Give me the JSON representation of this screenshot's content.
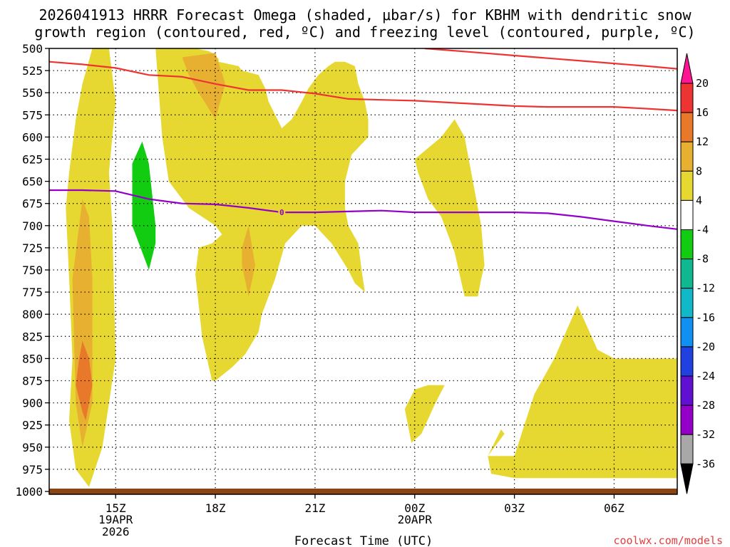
{
  "chart_data": {
    "type": "contour",
    "title_line1": "2026041913 HRRR Forecast Omega (shaded, μbar/s) for KBHM with dendritic snow",
    "title_line2": "growth region (contoured, red, ºC) and freezing level (contoured, purple, ºC)",
    "xlabel": "Forecast Time (UTC)",
    "credit": "coolwx.com/models",
    "y_ticks": [
      500,
      525,
      550,
      575,
      600,
      625,
      650,
      675,
      700,
      725,
      750,
      775,
      800,
      825,
      850,
      875,
      900,
      925,
      950,
      975,
      1000
    ],
    "x_ticks": [
      {
        "label": "15Z",
        "sub1": "19APR",
        "sub2": "2026",
        "t": 15
      },
      {
        "label": "18Z",
        "sub1": "",
        "sub2": "",
        "t": 18
      },
      {
        "label": "21Z",
        "sub1": "",
        "sub2": "",
        "t": 21
      },
      {
        "label": "00Z",
        "sub1": "20APR",
        "sub2": "",
        "t": 24
      },
      {
        "label": "03Z",
        "sub1": "",
        "sub2": "",
        "t": 27
      },
      {
        "label": "06Z",
        "sub1": "",
        "sub2": "",
        "t": 30
      }
    ],
    "xlim": [
      13.0,
      31.9
    ],
    "ylim": [
      500,
      1000
    ],
    "colorbar": {
      "labels": [
        "20",
        "16",
        "12",
        "8",
        "4",
        "-4",
        "-8",
        "-12",
        "-16",
        "-20",
        "-24",
        "-28",
        "-32",
        "-36"
      ],
      "colors": [
        "#ff1493",
        "#ee3333",
        "#e8782a",
        "#e8b030",
        "#e6d830",
        "#ffffff",
        "#11cc11",
        "#10b890",
        "#10b8c8",
        "#1090f0",
        "#2040e0",
        "#6010d0",
        "#9400c8",
        "#a8a8a8",
        "#000000"
      ],
      "range": [
        -36,
        20
      ]
    },
    "colors": {
      "red_contour": "#ee3333",
      "purple_contour": "#9400c8",
      "ground": "#8b4513",
      "grid": "#000000"
    },
    "red_contour": {
      "name": "dendritic snow growth region",
      "t": [
        13.0,
        14.0,
        15.0,
        16.0,
        17.0,
        18.0,
        19.0,
        20.0,
        21.0,
        22.0,
        23.0,
        24.0,
        25.0,
        26.0,
        27.0,
        28.0,
        29.0,
        30.0,
        31.0,
        31.9
      ],
      "p": [
        515,
        518,
        522,
        530,
        532,
        540,
        547,
        547,
        551,
        557,
        558,
        559,
        561,
        563,
        565,
        566,
        566,
        566,
        568,
        570
      ]
    },
    "red_contour_upper": {
      "t": [
        24.3,
        25.0,
        26.0,
        27.0,
        28.0,
        29.0,
        30.0,
        31.0,
        31.9
      ],
      "p": [
        500,
        502,
        505,
        508,
        511,
        514,
        517,
        520,
        523
      ]
    },
    "purple_contour": {
      "name": "freezing level",
      "t": [
        13.0,
        14.0,
        15.0,
        16.0,
        17.0,
        18.0,
        19.0,
        20.0,
        21.0,
        22.0,
        23.0,
        24.0,
        25.0,
        26.0,
        27.0,
        28.0,
        29.0,
        30.0,
        31.0,
        31.9
      ],
      "p": [
        660,
        660,
        661,
        670,
        675,
        676,
        680,
        685,
        685,
        684,
        683,
        685,
        685,
        685,
        685,
        686,
        690,
        695,
        700,
        704
      ],
      "label": "0",
      "label_t": 20.0
    },
    "regions": [
      {
        "v": 4,
        "t": [
          14.3,
          14.8,
          15.0,
          14.8,
          14.9,
          15.0,
          14.6,
          14.2,
          13.8,
          13.6,
          13.7,
          13.6,
          13.5,
          13.6,
          13.8,
          14.0,
          14.3
        ],
        "p": [
          500,
          500,
          560,
          640,
          700,
          850,
          950,
          995,
          975,
          920,
          850,
          760,
          680,
          640,
          580,
          540,
          500
        ]
      },
      {
        "v": 8,
        "t": [
          14.0,
          14.2,
          14.3,
          14.3,
          14.0,
          13.8,
          13.7,
          13.9,
          14.0
        ],
        "p": [
          670,
          690,
          760,
          900,
          950,
          900,
          760,
          700,
          670
        ]
      },
      {
        "v": 12,
        "t": [
          14.0,
          14.2,
          14.3,
          14.1,
          14.0,
          13.8,
          13.9,
          14.0
        ],
        "p": [
          830,
          850,
          880,
          920,
          910,
          880,
          850,
          830
        ]
      },
      {
        "v": -8,
        "t": [
          15.8,
          16.0,
          16.2,
          16.2,
          16.0,
          15.9,
          15.5,
          15.5,
          15.8
        ],
        "p": [
          605,
          630,
          700,
          720,
          750,
          740,
          700,
          630,
          605
        ]
      },
      {
        "v": 4,
        "t": [
          16.2,
          17.4,
          17.8,
          17.9,
          18.0,
          18.1,
          18.1,
          18.7,
          18.8,
          19.1,
          19.3,
          19.5,
          19.6,
          19.8,
          20.0,
          20.3,
          20.6,
          20.8,
          21.1,
          21.4,
          21.6,
          21.9,
          22.2,
          22.3,
          22.5,
          22.6,
          22.6,
          22.1,
          21.9,
          21.9,
          22.0,
          22.3,
          22.4,
          22.5,
          22.2,
          22.0,
          21.5,
          21.0,
          20.6,
          20.1,
          19.8,
          19.4,
          19.3,
          18.9,
          18.5,
          18.0,
          18.0,
          17.9,
          17.6,
          17.4,
          17.5,
          17.9,
          18.2,
          18.0,
          17.2,
          16.6,
          16.4,
          16.2
        ],
        "p": [
          500,
          500,
          503,
          505,
          508,
          512,
          515,
          520,
          525,
          528,
          530,
          545,
          560,
          575,
          590,
          580,
          560,
          545,
          530,
          520,
          515,
          515,
          520,
          540,
          560,
          580,
          600,
          620,
          650,
          680,
          700,
          720,
          750,
          775,
          765,
          750,
          720,
          700,
          700,
          720,
          760,
          800,
          820,
          845,
          860,
          875,
          875,
          875,
          825,
          755,
          725,
          720,
          710,
          700,
          680,
          650,
          600,
          500
        ]
      },
      {
        "v": 8,
        "t": [
          17.0,
          18.0,
          18.3,
          18.0,
          17.5,
          17.2,
          17.0
        ],
        "p": [
          510,
          505,
          540,
          580,
          550,
          530,
          510
        ]
      },
      {
        "v": 8,
        "t": [
          18.8,
          19.0,
          19.2,
          19.0,
          18.8
        ],
        "p": [
          725,
          700,
          745,
          780,
          745
        ]
      },
      {
        "v": 4,
        "t": [
          24.0,
          24.8,
          25.2,
          25.5,
          26.0,
          26.1,
          26.0,
          25.9,
          25.5,
          25.2,
          24.8,
          24.4,
          24.1,
          24.0
        ],
        "p": [
          625,
          600,
          580,
          600,
          700,
          745,
          760,
          780,
          780,
          730,
          690,
          670,
          640,
          625
        ]
      },
      {
        "v": 4,
        "t": [
          23.7,
          24.0,
          24.4,
          24.9,
          24.6,
          24.2,
          23.9,
          23.7
        ],
        "p": [
          907,
          885,
          880,
          880,
          902,
          935,
          945,
          907
        ]
      },
      {
        "v": 4,
        "t": [
          26.2,
          27.0,
          27.6,
          28.2,
          28.9,
          29.5,
          30.0,
          30.5,
          31.0,
          31.5,
          31.9,
          31.9,
          30.5,
          30.0,
          27.5,
          27.0,
          26.3,
          26.2,
          26.7,
          26.6,
          26.2
        ],
        "p": [
          960,
          960,
          890,
          850,
          790,
          840,
          850,
          850,
          850,
          850,
          850,
          985,
          985,
          985,
          985,
          985,
          980,
          960,
          935,
          930,
          960
        ]
      }
    ]
  }
}
